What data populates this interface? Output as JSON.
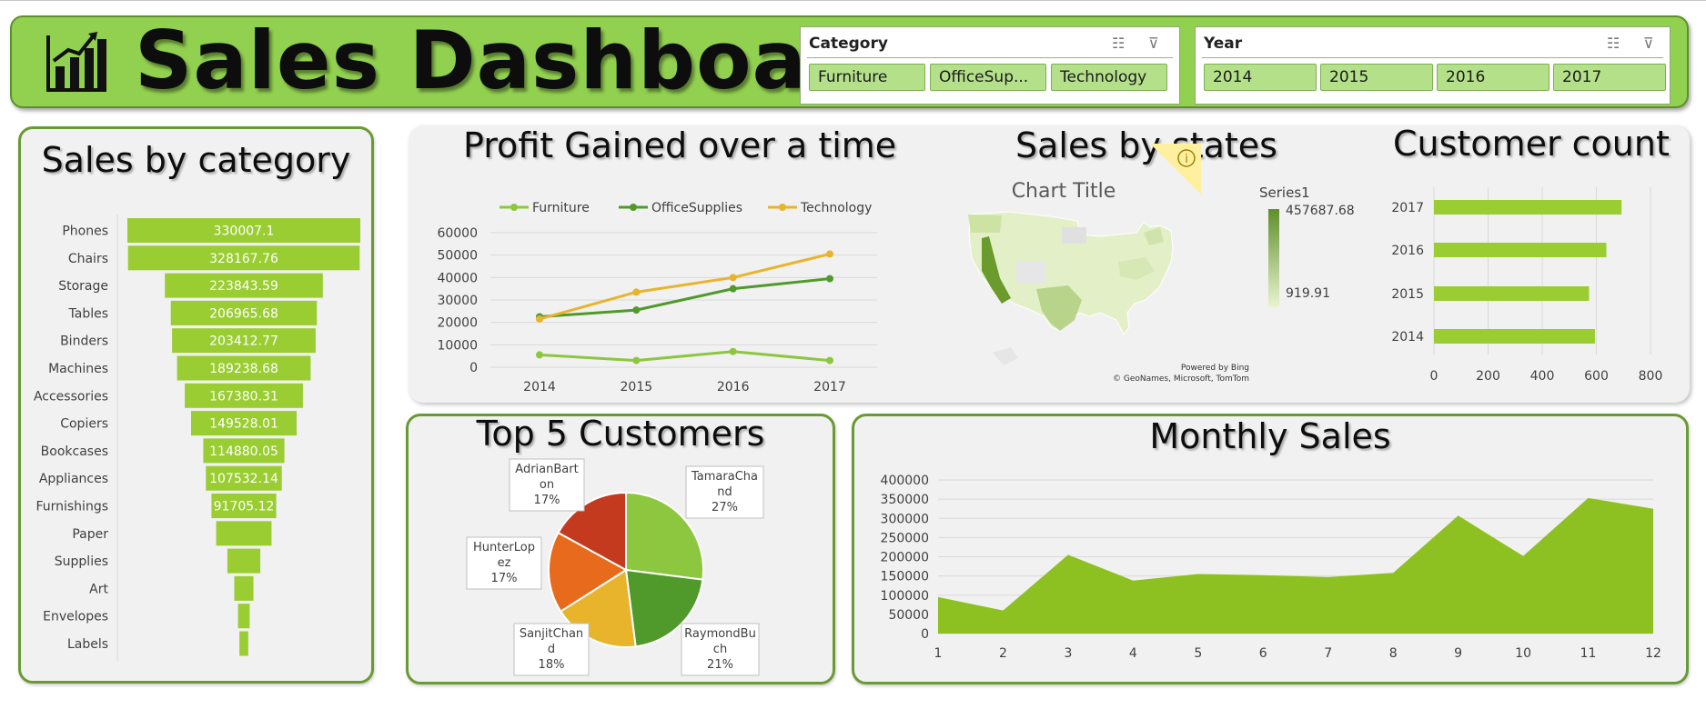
{
  "header": {
    "title": "Sales Dashboard"
  },
  "slicers": {
    "category": {
      "title": "Category",
      "items": [
        "Furniture",
        "OfficeSup...",
        "Technology"
      ]
    },
    "year": {
      "title": "Year",
      "items": [
        "2014",
        "2015",
        "2016",
        "2017"
      ]
    }
  },
  "panels": {
    "sales_by_category": "Sales by category",
    "profit": "Profit Gained over a time",
    "states": "Sales by states",
    "customer_count": "Customer count",
    "top5": "Top 5 Customers",
    "monthly": "Monthly Sales"
  },
  "map": {
    "chart_title": "Chart Title",
    "legend_series": "Series1",
    "legend_max": "457687.68",
    "legend_min": "919.91",
    "credit_line1": "Powered by Bing",
    "credit_line2": "© GeoNames, Microsoft, TomTom",
    "info_icon": "info-icon"
  },
  "colors": {
    "header_green": "#92d050",
    "bar_green": "#9acd32",
    "furniture": "#8dc63f",
    "officesupplies": "#4f9a2a",
    "technology": "#e8b42c"
  },
  "chart_data": [
    {
      "id": "sales_by_category",
      "type": "bar",
      "orientation": "horizontal-funnel",
      "categories": [
        "Phones",
        "Chairs",
        "Storage",
        "Tables",
        "Binders",
        "Machines",
        "Accessories",
        "Copiers",
        "Bookcases",
        "Appliances",
        "Furnishings",
        "Paper",
        "Supplies",
        "Art",
        "Envelopes",
        "Labels"
      ],
      "values": [
        330007.1,
        328167.76,
        223843.59,
        206965.68,
        203412.77,
        189238.68,
        167380.31,
        149528.01,
        114880.05,
        107532.14,
        91705.12,
        78479,
        46674,
        27119,
        16476,
        12486
      ],
      "labels": [
        "330007.1",
        "328167.76",
        "223843.59",
        "206965.68",
        "203412.77",
        "189238.68",
        "167380.31",
        "149528.01",
        "114880.05",
        "107532.14",
        "91705.12",
        "",
        "",
        "",
        "",
        ""
      ],
      "title": "Sales by category"
    },
    {
      "id": "profit",
      "type": "line",
      "title": "Profit Gained over a time",
      "categories": [
        "2014",
        "2015",
        "2016",
        "2017"
      ],
      "series": [
        {
          "name": "Furniture",
          "values": [
            5500,
            3000,
            7000,
            3000
          ]
        },
        {
          "name": "OfficeSupplies",
          "values": [
            22500,
            25500,
            35000,
            39500
          ]
        },
        {
          "name": "Technology",
          "values": [
            21500,
            33500,
            40000,
            50500
          ]
        }
      ],
      "ylim": [
        0,
        60000
      ],
      "yticks": [
        "0",
        "10000",
        "20000",
        "30000",
        "40000",
        "50000",
        "60000"
      ],
      "legend": "top",
      "grid": true
    },
    {
      "id": "customer_count",
      "type": "bar",
      "orientation": "horizontal",
      "title": "Customer count",
      "categories": [
        "2017",
        "2016",
        "2015",
        "2014"
      ],
      "values": [
        693,
        637,
        573,
        595
      ],
      "xlim": [
        0,
        800
      ],
      "xticks": [
        "0",
        "200",
        "400",
        "600",
        "800"
      ],
      "grid": true
    },
    {
      "id": "top5",
      "type": "pie",
      "title": "Top 5 Customers",
      "slices": [
        {
          "name": "TamaraChand",
          "label": "TamaraCha\nnd\n27%",
          "value": 27
        },
        {
          "name": "RaymondBuch",
          "label": "RaymondBu\nch\n21%",
          "value": 21
        },
        {
          "name": "SanjitChand",
          "label": "SanjitChan\nd\n18%",
          "value": 18
        },
        {
          "name": "HunterLopez",
          "label": "HunterLop\nez\n17%",
          "value": 17
        },
        {
          "name": "AdrianBarton",
          "label": "AdrianBart\non\n17%",
          "value": 17
        }
      ]
    },
    {
      "id": "monthly",
      "type": "area",
      "title": "Monthly Sales",
      "x": [
        "1",
        "2",
        "3",
        "4",
        "5",
        "6",
        "7",
        "8",
        "9",
        "10",
        "11",
        "12"
      ],
      "values": [
        95000,
        60000,
        205000,
        138000,
        155000,
        152000,
        147000,
        158000,
        307000,
        202000,
        353000,
        325000
      ],
      "ylim": [
        0,
        400000
      ],
      "yticks": [
        "0",
        "50000",
        "100000",
        "150000",
        "200000",
        "250000",
        "300000",
        "350000",
        "400000"
      ],
      "grid": true
    }
  ]
}
